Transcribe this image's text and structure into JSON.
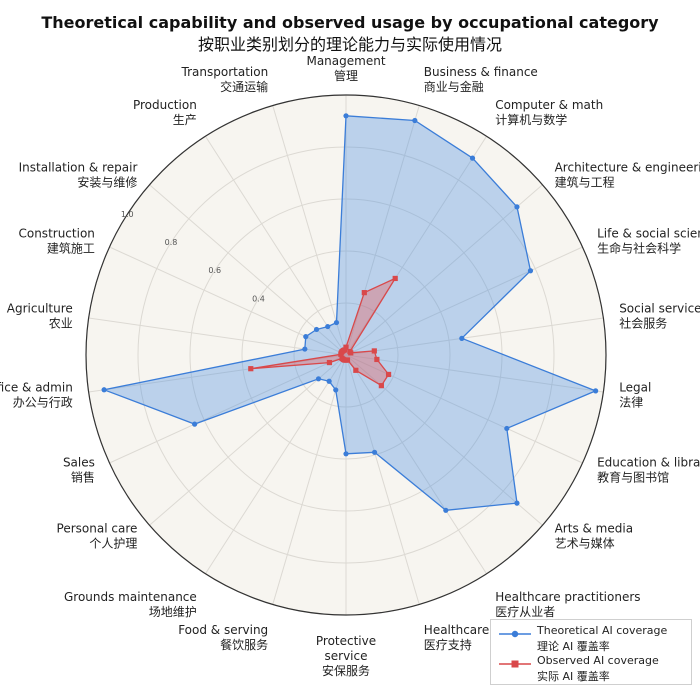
{
  "title": "Theoretical capability and observed usage by occupational category",
  "subtitle": "按职业类别划分的理论能力与实际使用情况",
  "chart_data": {
    "type": "radar",
    "rlim": [
      0,
      1
    ],
    "radial_ticks": [
      "0.4",
      "0.6",
      "0.8",
      "1.0"
    ],
    "radial_tick_values": [
      0.4,
      0.6,
      0.8,
      1.0
    ],
    "categories": [
      {
        "en": "Management",
        "zh": "管理"
      },
      {
        "en": "Business & finance",
        "zh": "商业与金融"
      },
      {
        "en": "Computer & math",
        "zh": "计算机与数学"
      },
      {
        "en": "Architecture & engineering",
        "zh": "建筑与工程"
      },
      {
        "en": "Life & social sciences",
        "zh": "生命与社会科学"
      },
      {
        "en": "Social services",
        "zh": "社会服务"
      },
      {
        "en": "Legal",
        "zh": "法律"
      },
      {
        "en": "Education & library",
        "zh": "教育与图书馆"
      },
      {
        "en": "Arts & media",
        "zh": "艺术与媒体"
      },
      {
        "en": "Healthcare practitioners",
        "zh": "医疗从业者"
      },
      {
        "en": "Healthcare support",
        "zh": "医疗支持"
      },
      {
        "en": "Protective service",
        "zh": "安保服务"
      },
      {
        "en": "Food & serving",
        "zh": "餐饮服务"
      },
      {
        "en": "Grounds maintenance",
        "zh": "场地维护"
      },
      {
        "en": "Personal care",
        "zh": "个人护理"
      },
      {
        "en": "Sales",
        "zh": "销售"
      },
      {
        "en": "Office & admin",
        "zh": "办公与行政"
      },
      {
        "en": "Agriculture",
        "zh": "农业"
      },
      {
        "en": "Construction",
        "zh": "建筑施工"
      },
      {
        "en": "Installation & repair",
        "zh": "安装与维修"
      },
      {
        "en": "Production",
        "zh": "生产"
      },
      {
        "en": "Transportation",
        "zh": "交通运输"
      }
    ],
    "series": [
      {
        "name": "Theoretical AI coverage",
        "name_zh": "理论 AI 覆盖率",
        "color": "#3b7dd8",
        "fill": "rgba(74,144,226,0.35)",
        "marker": "circle",
        "values": [
          0.92,
          0.94,
          0.9,
          0.87,
          0.78,
          0.45,
          0.97,
          0.68,
          0.87,
          0.71,
          0.39,
          0.38,
          0.14,
          0.12,
          0.14,
          0.64,
          0.94,
          0.16,
          0.17,
          0.15,
          0.13,
          0.13
        ]
      },
      {
        "name": "Observed AI coverage",
        "name_zh": "实际 AI 覆盖率",
        "color": "#d9484a",
        "fill": "rgba(230,100,100,0.4)",
        "marker": "square",
        "values": [
          0.03,
          0.25,
          0.35,
          0.02,
          0.02,
          0.11,
          0.12,
          0.18,
          0.18,
          0.07,
          0.02,
          0.02,
          0.02,
          0.02,
          0.02,
          0.07,
          0.37,
          0.02,
          0.02,
          0.02,
          0.02,
          0.02
        ]
      }
    ],
    "grid": true
  }
}
